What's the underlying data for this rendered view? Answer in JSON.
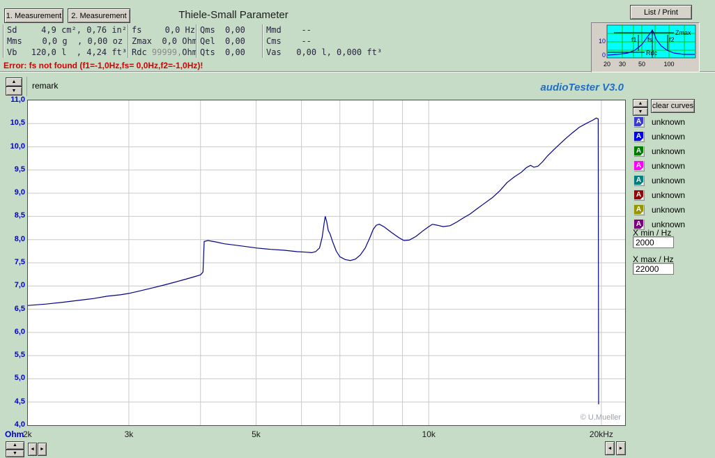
{
  "header": {
    "measure1_button": "1. Measurement",
    "measure2_button": "2. Measurement",
    "title": "Thiele-Small Parameter",
    "list_print_button": "List / Print",
    "error": "Error: fs not found (f1=-1,0Hz,fs= 0,0Hz,f2=-1,0Hz)!",
    "param_columns": [
      {
        "rows": [
          {
            "label": "Sd",
            "value": "  4,9 cm², 0,76 in²"
          },
          {
            "label": "Mms",
            "value": "  0,0 g  , 0,00 oz"
          },
          {
            "label": "Vb",
            "value": "120,0 l  , 4,24 ft³"
          }
        ]
      },
      {
        "rows": [
          {
            "label": "fs",
            "value": "  0,0 Hz"
          },
          {
            "label": "Zmax",
            "value": "  0,0 Ohm"
          },
          {
            "label": "Rdc",
            "muted": " 99999,",
            "value": "Ohm"
          }
        ]
      },
      {
        "rows": [
          {
            "label": "Qms",
            "value": "0,00"
          },
          {
            "label": "Qel",
            "value": "0,00"
          },
          {
            "label": "Qts",
            "value": "0,00"
          }
        ]
      },
      {
        "rows": [
          {
            "label": "Mmd",
            "value": "  --"
          },
          {
            "label": "Cms",
            "value": "  --"
          },
          {
            "label": "Vas",
            "value": " 0,00 l, 0,000 ft³"
          }
        ]
      }
    ],
    "thumbnail": {
      "y_ticks": [
        "10",
        "0"
      ],
      "x_ticks": [
        "20",
        "30",
        "50",
        "100"
      ],
      "zmax_label": "Zmax",
      "f1_label": "f1",
      "fs_label": "fs",
      "f2_label": "f2",
      "rdc_label": "Rdc"
    }
  },
  "toolbar": {
    "remark_label": "remark",
    "app_title": "audioTester  V3.0"
  },
  "sidebar": {
    "clear_curves_button": "clear curves",
    "curves": [
      {
        "label": "unknown",
        "color": "#3a3ad4"
      },
      {
        "label": "unknown",
        "color": "#0000f0"
      },
      {
        "label": "unknown",
        "color": "#007d00"
      },
      {
        "label": "unknown",
        "color": "#ff00ff"
      },
      {
        "label": "unknown",
        "color": "#008080"
      },
      {
        "label": "unknown",
        "color": "#900909"
      },
      {
        "label": "unknown",
        "color": "#969600"
      },
      {
        "label": "unknown",
        "color": "#7d007d"
      }
    ],
    "xmin_label": "X min / Hz",
    "xmin_value": "2000",
    "xmax_label": "X max / Hz",
    "xmax_value": "22000"
  },
  "chart_data": {
    "type": "line",
    "x_axis": {
      "scale": "log",
      "min": 2000,
      "max": 22000,
      "unit_label": "Ohm",
      "gridlines": [
        3000,
        4000,
        5000,
        6000,
        7000,
        8000,
        9000,
        10000,
        20000
      ],
      "tick_labels": [
        {
          "f": 2000,
          "label": "2k"
        },
        {
          "f": 3000,
          "label": "3k"
        },
        {
          "f": 5000,
          "label": "5k"
        },
        {
          "f": 10000,
          "label": "10k"
        },
        {
          "f": 20000,
          "label": "20kHz"
        }
      ]
    },
    "y_axis": {
      "min": 4.0,
      "max": 11.0,
      "step": 0.5,
      "unit": "Ohm"
    },
    "grid": true,
    "watermark": "© U.Mueller",
    "series": [
      {
        "name": "impedance-curve",
        "color": "#00008b",
        "points": [
          [
            2000,
            6.58
          ],
          [
            2150,
            6.61
          ],
          [
            2300,
            6.65
          ],
          [
            2450,
            6.69
          ],
          [
            2600,
            6.73
          ],
          [
            2750,
            6.78
          ],
          [
            2900,
            6.81
          ],
          [
            3000,
            6.84
          ],
          [
            3150,
            6.9
          ],
          [
            3300,
            6.96
          ],
          [
            3450,
            7.02
          ],
          [
            3600,
            7.08
          ],
          [
            3750,
            7.14
          ],
          [
            3900,
            7.2
          ],
          [
            4000,
            7.24
          ],
          [
            4040,
            7.3
          ],
          [
            4060,
            7.96
          ],
          [
            4120,
            7.98
          ],
          [
            4250,
            7.95
          ],
          [
            4400,
            7.91
          ],
          [
            4600,
            7.88
          ],
          [
            4800,
            7.85
          ],
          [
            5000,
            7.82
          ],
          [
            5300,
            7.79
          ],
          [
            5600,
            7.77
          ],
          [
            5900,
            7.74
          ],
          [
            6100,
            7.73
          ],
          [
            6250,
            7.72
          ],
          [
            6350,
            7.74
          ],
          [
            6450,
            7.82
          ],
          [
            6520,
            8.05
          ],
          [
            6570,
            8.35
          ],
          [
            6600,
            8.5
          ],
          [
            6640,
            8.38
          ],
          [
            6680,
            8.2
          ],
          [
            6730,
            8.12
          ],
          [
            6800,
            7.95
          ],
          [
            6900,
            7.75
          ],
          [
            7000,
            7.63
          ],
          [
            7150,
            7.57
          ],
          [
            7300,
            7.55
          ],
          [
            7450,
            7.58
          ],
          [
            7600,
            7.67
          ],
          [
            7750,
            7.82
          ],
          [
            7900,
            8.05
          ],
          [
            8000,
            8.22
          ],
          [
            8100,
            8.31
          ],
          [
            8200,
            8.33
          ],
          [
            8350,
            8.28
          ],
          [
            8600,
            8.16
          ],
          [
            8850,
            8.05
          ],
          [
            9050,
            7.98
          ],
          [
            9250,
            7.99
          ],
          [
            9500,
            8.07
          ],
          [
            9750,
            8.18
          ],
          [
            10000,
            8.28
          ],
          [
            10150,
            8.33
          ],
          [
            10350,
            8.31
          ],
          [
            10600,
            8.28
          ],
          [
            10900,
            8.3
          ],
          [
            11200,
            8.38
          ],
          [
            11500,
            8.47
          ],
          [
            11800,
            8.55
          ],
          [
            12100,
            8.65
          ],
          [
            12500,
            8.78
          ],
          [
            12900,
            8.9
          ],
          [
            13300,
            9.05
          ],
          [
            13700,
            9.23
          ],
          [
            14100,
            9.35
          ],
          [
            14500,
            9.45
          ],
          [
            14800,
            9.55
          ],
          [
            15050,
            9.6
          ],
          [
            15250,
            9.56
          ],
          [
            15500,
            9.58
          ],
          [
            15800,
            9.68
          ],
          [
            16100,
            9.8
          ],
          [
            16500,
            9.93
          ],
          [
            16900,
            10.05
          ],
          [
            17300,
            10.17
          ],
          [
            17800,
            10.3
          ],
          [
            18300,
            10.42
          ],
          [
            18800,
            10.5
          ],
          [
            19300,
            10.57
          ],
          [
            19600,
            10.62
          ],
          [
            19750,
            10.6
          ],
          [
            19780,
            4.45
          ]
        ]
      }
    ]
  }
}
